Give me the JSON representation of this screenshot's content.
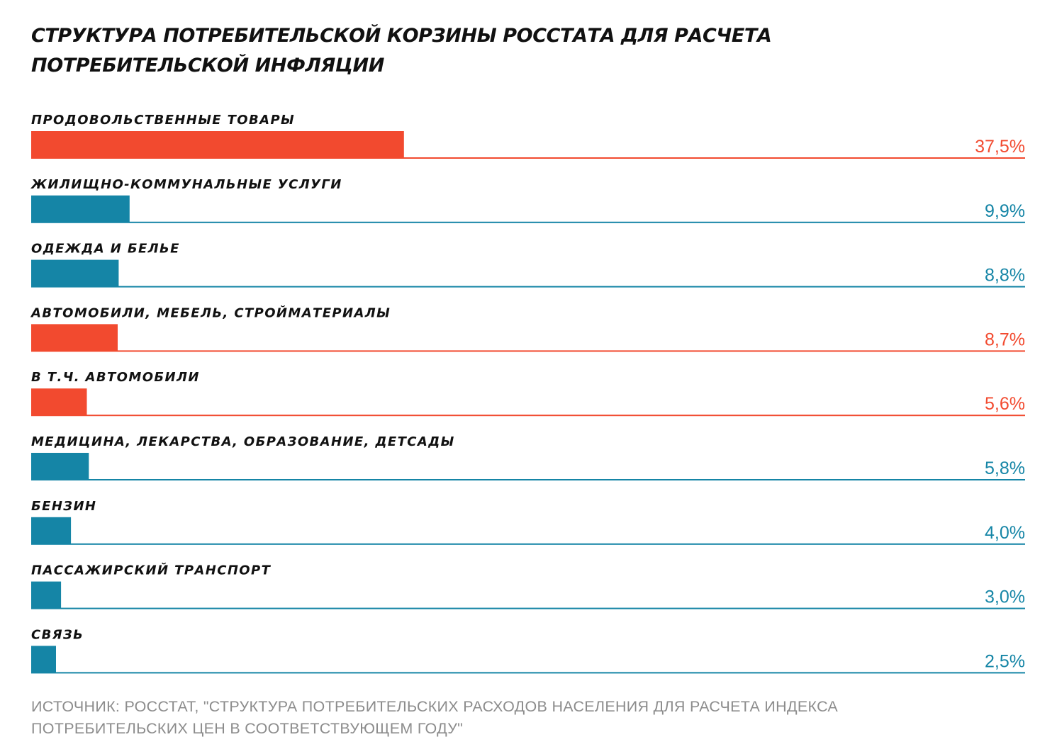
{
  "chart_data": {
    "type": "bar",
    "orientation": "horizontal",
    "title_lines": [
      "СТРУКТУРА ПОТРЕБИТЕЛЬСКОЙ КОРЗИНЫ РОССТАТА ДЛЯ РАСЧЕТА",
      "ПОТРЕБИТЕЛЬСКОЙ ИНФЛЯЦИИ"
    ],
    "categories": [
      "ПРОДОВОЛЬСТВЕННЫЕ ТОВАРЫ",
      "ЖИЛИЩНО-КОММУНАЛЬНЫЕ УСЛУГИ",
      "ОДЕЖДА И БЕЛЬЕ",
      "АВТОМОБИЛИ, МЕБЕЛЬ, СТРОЙМАТЕРИАЛЫ",
      "В Т.Ч. АВТОМОБИЛИ",
      "МЕДИЦИНА, ЛЕКАРСТВА, ОБРАЗОВАНИЕ, ДЕТСАДЫ",
      "БЕНЗИН",
      "ПАССАЖИРСКИЙ ТРАНСПОРТ",
      "СВЯЗЬ"
    ],
    "values": [
      37.5,
      9.9,
      8.8,
      8.7,
      5.6,
      5.8,
      4.0,
      3.0,
      2.5
    ],
    "value_labels": [
      "37,5%",
      "9,9%",
      "8,8%",
      "8,7%",
      "5,6%",
      "5,8%",
      "4,0%",
      "3,0%",
      "2,5%"
    ],
    "bar_colors": [
      "#f24a2f",
      "#1585a6",
      "#1585a6",
      "#f24a2f",
      "#f24a2f",
      "#1585a6",
      "#1585a6",
      "#1585a6",
      "#1585a6"
    ],
    "xlim": [
      0,
      100
    ],
    "unit": "%",
    "grid": false,
    "legend": "none"
  },
  "source_lines": [
    "ИСТОЧНИК: РОССТАТ, \"СТРУКТУРА ПОТРЕБИТЕЛЬСКИХ РАСХОДОВ НАСЕЛЕНИЯ ДЛЯ РАСЧЕТА ИНДЕКСА",
    "ПОТРЕБИТЕЛЬСКИХ ЦЕН В СООТВЕТСТВУЮЩЕМ ГОДУ\""
  ]
}
